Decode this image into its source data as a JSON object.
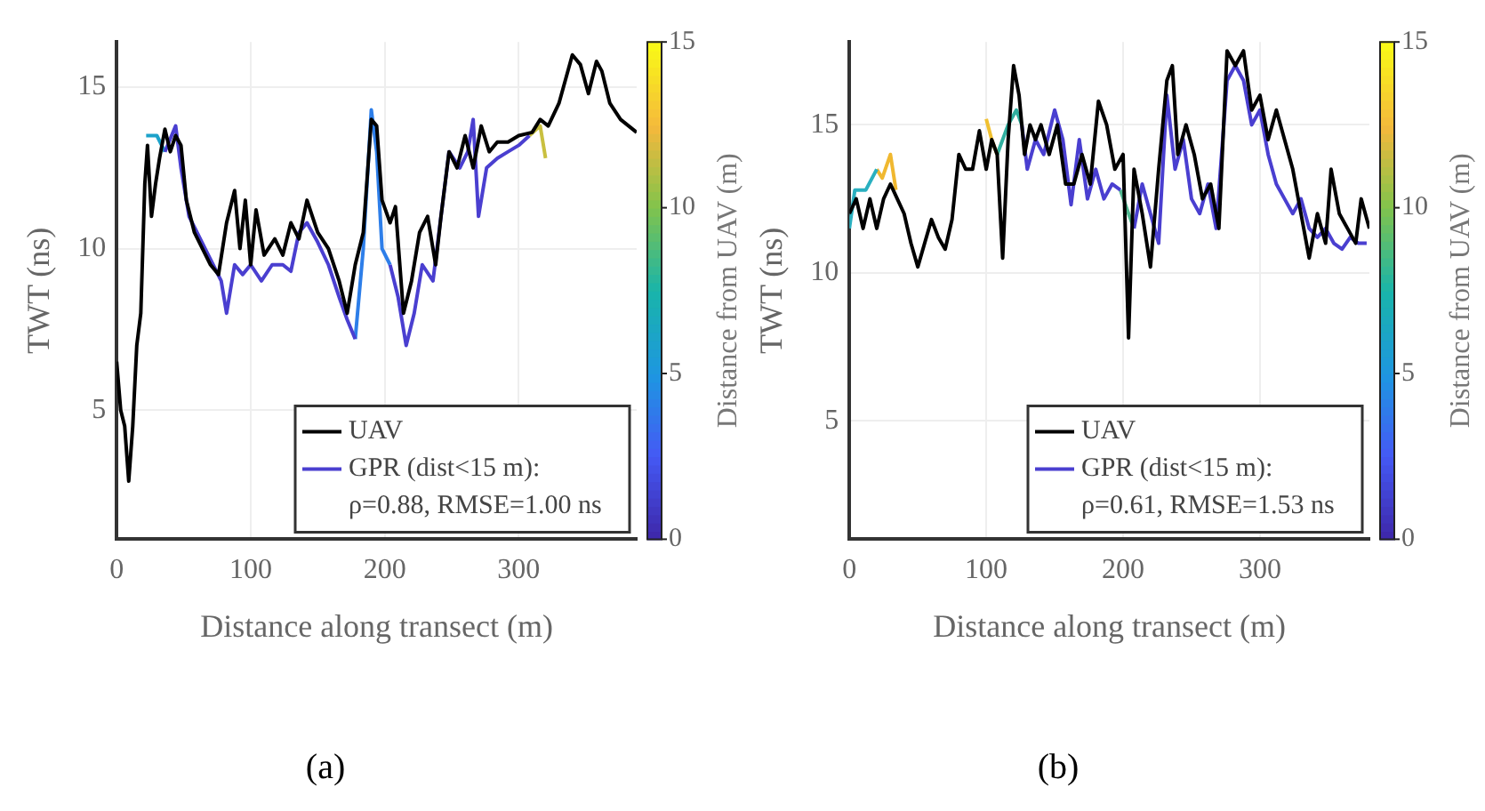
{
  "chart_data": [
    {
      "type": "line",
      "title": "(a)",
      "xlabel": "Distance along transect (m)",
      "ylabel": "TWT (ns)",
      "clabel": "Distance from UAV (m)",
      "xlim": [
        0,
        388
      ],
      "xticks": [
        0,
        100,
        200,
        300
      ],
      "ylim": [
        1,
        16.4
      ],
      "yticks": [
        5,
        10,
        15
      ],
      "clim": [
        0,
        15
      ],
      "cticks": [
        0,
        5,
        10,
        15
      ],
      "grid": true,
      "legend": "bottom right",
      "annotations": [
        "ρ=0.88, RMSE=1.00 ns"
      ],
      "series": [
        {
          "name": "UAV",
          "color": "#000000",
          "x": [
            0,
            3,
            6,
            9,
            12,
            15,
            18,
            21,
            23,
            26,
            29,
            32,
            36,
            40,
            44,
            48,
            52,
            58,
            64,
            70,
            76,
            82,
            88,
            92,
            96,
            100,
            104,
            110,
            118,
            124,
            130,
            136,
            142,
            150,
            158,
            166,
            172,
            178,
            184,
            190,
            194,
            198,
            204,
            208,
            214,
            220,
            226,
            232,
            238,
            242,
            248,
            254,
            260,
            266,
            272,
            278,
            284,
            292,
            300,
            310,
            316,
            322,
            330,
            340,
            346,
            352,
            358,
            362,
            368,
            376,
            382,
            388
          ],
          "values": [
            6.5,
            5,
            4.5,
            2.8,
            4.5,
            7,
            8,
            12,
            13.2,
            11,
            12,
            12.8,
            13.7,
            13,
            13.5,
            13.2,
            11.5,
            10.5,
            10,
            9.5,
            9.2,
            10.8,
            11.8,
            10,
            11.5,
            9.5,
            11.2,
            9.8,
            10.3,
            9.8,
            10.8,
            10.3,
            11.5,
            10.5,
            10,
            9,
            8,
            9.5,
            10.5,
            14,
            13.8,
            11.5,
            10.8,
            11.3,
            8,
            9,
            10.5,
            11,
            9.5,
            11,
            13,
            12.5,
            13.5,
            12.5,
            13.8,
            13,
            13.3,
            13.3,
            13.5,
            13.6,
            14,
            13.8,
            14.5,
            16,
            15.7,
            14.8,
            15.8,
            15.5,
            14.5,
            14,
            13.8,
            13.6
          ]
        },
        {
          "name": "GPR (dist<15 m):",
          "color": "#4a3fd0",
          "x": [
            36,
            44,
            48,
            54,
            60,
            66,
            72,
            78,
            82,
            88,
            94,
            100,
            108,
            116,
            124,
            130,
            136,
            142,
            150,
            158,
            166,
            172,
            178,
            190,
            204,
            210,
            216,
            222,
            228,
            236,
            242,
            248,
            256,
            262,
            266,
            270,
            276,
            284,
            292,
            300,
            308
          ],
          "values": [
            13,
            13.8,
            12.5,
            11,
            10.5,
            10,
            9.5,
            9,
            8,
            9.5,
            9.2,
            9.5,
            9,
            9.5,
            9.5,
            9.3,
            10.5,
            10.8,
            10.2,
            9.5,
            8.5,
            7.8,
            7.2,
            null,
            9.5,
            8.5,
            7,
            8,
            9.5,
            9,
            11,
            13,
            12.5,
            13,
            14,
            11,
            12.5,
            12.8,
            13,
            13.2,
            13.5
          ]
        },
        {
          "color": "#1ca2ca",
          "x": [
            22,
            30,
            36
          ],
          "values": [
            13.5,
            13.5,
            13
          ]
        },
        {
          "color": "#2d7ee9",
          "x": [
            178,
            184,
            190,
            194,
            198,
            204
          ],
          "values": [
            7.2,
            10,
            14.3,
            13,
            10,
            9.5
          ]
        },
        {
          "color": "#c9c040",
          "x": [
            308,
            316,
            320
          ],
          "values": [
            13.5,
            13.8,
            12.8
          ]
        }
      ]
    },
    {
      "type": "line",
      "title": "(b)",
      "xlabel": "Distance along transect (m)",
      "ylabel": "TWT (ns)",
      "clabel": "Distance from UAV (m)",
      "xlim": [
        0,
        380
      ],
      "xticks": [
        0,
        100,
        200,
        300
      ],
      "ylim": [
        1,
        17.8
      ],
      "yticks": [
        5,
        10,
        15
      ],
      "clim": [
        0,
        15
      ],
      "cticks": [
        0,
        5,
        10,
        15
      ],
      "grid": true,
      "legend": "bottom right",
      "annotations": [
        "ρ=0.61, RMSE=1.53 ns"
      ],
      "series": [
        {
          "name": "UAV",
          "color": "#000000",
          "x": [
            0,
            5,
            10,
            15,
            20,
            25,
            30,
            35,
            40,
            45,
            50,
            55,
            60,
            65,
            70,
            75,
            80,
            85,
            90,
            95,
            100,
            104,
            108,
            112,
            116,
            120,
            124,
            128,
            132,
            136,
            140,
            146,
            152,
            158,
            164,
            170,
            176,
            182,
            188,
            194,
            200,
            204,
            208,
            214,
            220,
            226,
            232,
            236,
            240,
            246,
            252,
            258,
            264,
            270,
            276,
            282,
            288,
            294,
            300,
            306,
            312,
            318,
            324,
            330,
            336,
            342,
            348,
            352,
            358,
            364,
            370,
            374,
            380
          ],
          "values": [
            12,
            12.5,
            11.5,
            12.5,
            11.5,
            12.5,
            13,
            12.5,
            12,
            11,
            10.2,
            11,
            11.8,
            11.2,
            10.8,
            11.8,
            14,
            13.5,
            13.5,
            14.8,
            13.5,
            14.5,
            14,
            10.5,
            14.5,
            17,
            16,
            14,
            15,
            14.5,
            15,
            14,
            15,
            13,
            13,
            14,
            13,
            15.8,
            15,
            13.5,
            14,
            7.8,
            13.5,
            12,
            10.2,
            13.5,
            16.5,
            17,
            14,
            15,
            14,
            12.5,
            13,
            11.5,
            17.5,
            17,
            17.5,
            15.5,
            16,
            14.5,
            15.5,
            14.5,
            13.5,
            12,
            10.5,
            12,
            11,
            13.5,
            12,
            11.5,
            11,
            12.5,
            11.5
          ]
        },
        {
          "name": "GPR (dist<15 m):",
          "color": "#4a3fd0",
          "x": [
            126,
            130,
            136,
            142,
            150,
            156,
            162,
            168,
            174,
            180,
            186,
            192,
            198,
            204,
            208,
            214,
            220,
            226,
            232,
            238,
            244,
            250,
            256,
            262,
            268,
            276,
            282,
            288,
            294,
            300,
            306,
            312,
            318,
            324,
            330,
            336,
            342,
            348,
            354,
            360,
            366,
            372,
            378
          ],
          "values": [
            15,
            13.5,
            14.5,
            14,
            15.5,
            14.5,
            12.3,
            14.5,
            12.5,
            13.5,
            12.5,
            13,
            12.8,
            null,
            11.5,
            13,
            12,
            11,
            16,
            13.5,
            14.5,
            12.5,
            12,
            13,
            11.5,
            16.5,
            17,
            16.5,
            15,
            15.5,
            14,
            13,
            12.5,
            12,
            12.5,
            11.5,
            11.2,
            11.5,
            11,
            10.8,
            11.2,
            11,
            11
          ]
        },
        {
          "color": "#2ab0c0",
          "x": [
            0,
            4,
            12,
            20
          ],
          "values": [
            11.5,
            12.8,
            12.8,
            13.5
          ]
        },
        {
          "color": "#f0b830",
          "x": [
            20,
            24,
            30,
            34
          ],
          "values": [
            13.5,
            13.2,
            14,
            12.8
          ]
        },
        {
          "color": "#f0c030",
          "x": [
            100,
            104,
            108
          ],
          "values": [
            15.2,
            14.5,
            14
          ]
        },
        {
          "color": "#30b0a0",
          "x": [
            108,
            116,
            122,
            126
          ],
          "values": [
            14,
            15,
            15.5,
            15
          ]
        },
        {
          "color": "#50b890",
          "x": [
            198,
            204,
            208
          ],
          "values": [
            12.8,
            12,
            11.5
          ]
        }
      ]
    }
  ]
}
